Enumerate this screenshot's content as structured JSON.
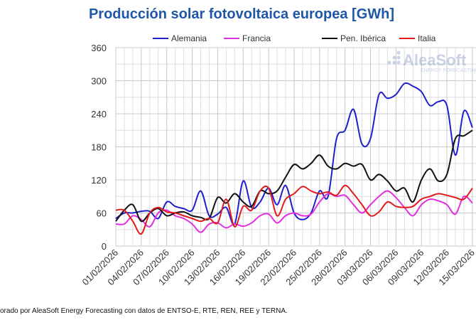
{
  "chart_data": {
    "type": "line",
    "title": "Producción solar fotovoltaica europea [GWh]",
    "xlabel": "",
    "ylabel": "",
    "ylim": [
      0,
      360
    ],
    "yticks": [
      0,
      60,
      120,
      180,
      240,
      300,
      360
    ],
    "grid": true,
    "legend_position": "top",
    "x": [
      "01/02/2026",
      "02/02/2026",
      "03/02/2026",
      "04/02/2026",
      "05/02/2026",
      "06/02/2026",
      "07/02/2026",
      "08/02/2026",
      "09/02/2026",
      "10/02/2026",
      "11/02/2026",
      "12/02/2026",
      "13/02/2026",
      "14/02/2026",
      "15/02/2026",
      "16/02/2026",
      "17/02/2026",
      "18/02/2026",
      "19/02/2026",
      "20/02/2026",
      "21/02/2026",
      "22/02/2026",
      "23/02/2026",
      "24/02/2026",
      "25/02/2026",
      "26/02/2026",
      "27/02/2026",
      "28/02/2026",
      "01/03/2026",
      "02/03/2026",
      "03/03/2026",
      "04/03/2026",
      "05/03/2026",
      "06/03/2026",
      "07/03/2026",
      "08/03/2026",
      "09/03/2026",
      "10/03/2026",
      "11/03/2026",
      "12/03/2026",
      "13/03/2026",
      "14/03/2026",
      "15/03/2026"
    ],
    "xticks": [
      "01/02/2026",
      "04/02/2026",
      "07/02/2026",
      "10/02/2026",
      "13/02/2026",
      "16/02/2026",
      "19/02/2026",
      "22/02/2026",
      "25/02/2026",
      "28/02/2026",
      "03/03/2026",
      "06/03/2026",
      "09/03/2026",
      "12/03/2026",
      "15/03/2026"
    ],
    "series": [
      {
        "name": "Alemania",
        "color": "#1f1fd0",
        "values": [
          50,
          60,
          60,
          63,
          63,
          50,
          80,
          72,
          68,
          65,
          100,
          55,
          58,
          70,
          40,
          118,
          70,
          80,
          105,
          75,
          110,
          60,
          48,
          60,
          100,
          90,
          195,
          210,
          248,
          185,
          195,
          275,
          268,
          275,
          295,
          290,
          280,
          255,
          262,
          255,
          165,
          245,
          215
        ]
      },
      {
        "name": "Francia",
        "color": "#e030e0",
        "values": [
          40,
          40,
          55,
          48,
          35,
          60,
          65,
          55,
          50,
          40,
          25,
          40,
          42,
          33,
          40,
          36,
          42,
          55,
          58,
          42,
          55,
          60,
          55,
          58,
          80,
          95,
          90,
          92,
          75,
          60,
          75,
          90,
          100,
          88,
          70,
          55,
          75,
          85,
          82,
          75,
          58,
          90,
          78
        ]
      },
      {
        "name": "Pen. Ibérica",
        "color": "#111111",
        "values": [
          45,
          65,
          75,
          45,
          60,
          68,
          55,
          60,
          62,
          55,
          52,
          50,
          88,
          78,
          95,
          80,
          72,
          100,
          95,
          100,
          125,
          148,
          140,
          150,
          165,
          145,
          140,
          150,
          145,
          148,
          120,
          130,
          118,
          100,
          105,
          80,
          120,
          140,
          118,
          130,
          195,
          200,
          210
        ]
      },
      {
        "name": "Italia",
        "color": "#e01c1c",
        "values": [
          65,
          65,
          45,
          22,
          60,
          70,
          62,
          60,
          55,
          50,
          45,
          50,
          42,
          85,
          35,
          72,
          65,
          100,
          105,
          55,
          85,
          95,
          108,
          100,
          95,
          98,
          92,
          110,
          95,
          75,
          55,
          62,
          80,
          72,
          70,
          72,
          85,
          90,
          95,
          92,
          88,
          85,
          105
        ]
      }
    ]
  },
  "watermark": {
    "brand": "AleaSoft",
    "tagline": "ENERGY FORECASTING"
  },
  "footer": "orado por AleaSoft Energy Forecasting con datos de ENTSO-E, RTE, REN, REE y TERNA."
}
